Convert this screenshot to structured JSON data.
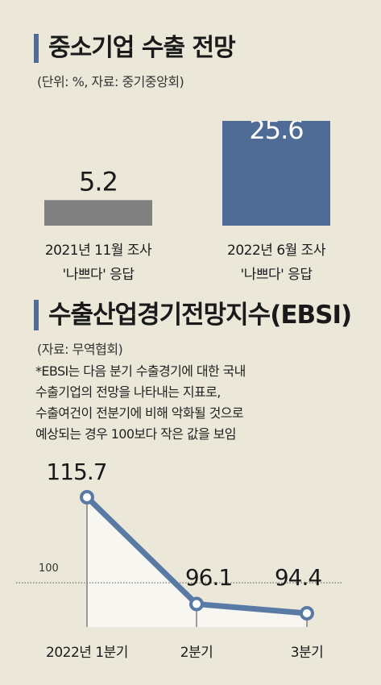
{
  "section1": {
    "title": "중소기업 수출 전망",
    "subtitle": "(단위: %, 자료: 중기중앙회)"
  },
  "section2": {
    "title": "수출산업경기전망지수(EBSI)",
    "subtitle": "(자료: 무역협회)",
    "note_lines": [
      "*EBSI는 다음 분기 수출경기에 대한 국내",
      "수출기업의 전망을 나타내는 지표로,",
      "수출여건이 전분기에 비해 악화될 것으로",
      "예상되는 경우 100보다 작은 값을 보임"
    ]
  },
  "chart_data": [
    {
      "type": "bar",
      "categories": [
        [
          "2021년 11월 조사",
          "'나쁘다' 응답"
        ],
        [
          "2022년 6월 조사",
          "'나쁘다' 응답"
        ]
      ],
      "values": [
        5.2,
        25.6
      ],
      "value_labels": [
        "5.2",
        "25.6"
      ],
      "colors": [
        "#808080",
        "#4f6c96"
      ]
    },
    {
      "type": "line",
      "categories": [
        "2022년 1분기",
        "2분기",
        "3분기"
      ],
      "values": [
        115.7,
        96.1,
        94.4
      ],
      "value_labels": [
        "115.7",
        "96.1",
        "94.4"
      ],
      "reference_line": {
        "value": 100,
        "label": "100"
      },
      "line_color": "#5a7aa6",
      "fill_color": "#f7f6f1"
    }
  ]
}
